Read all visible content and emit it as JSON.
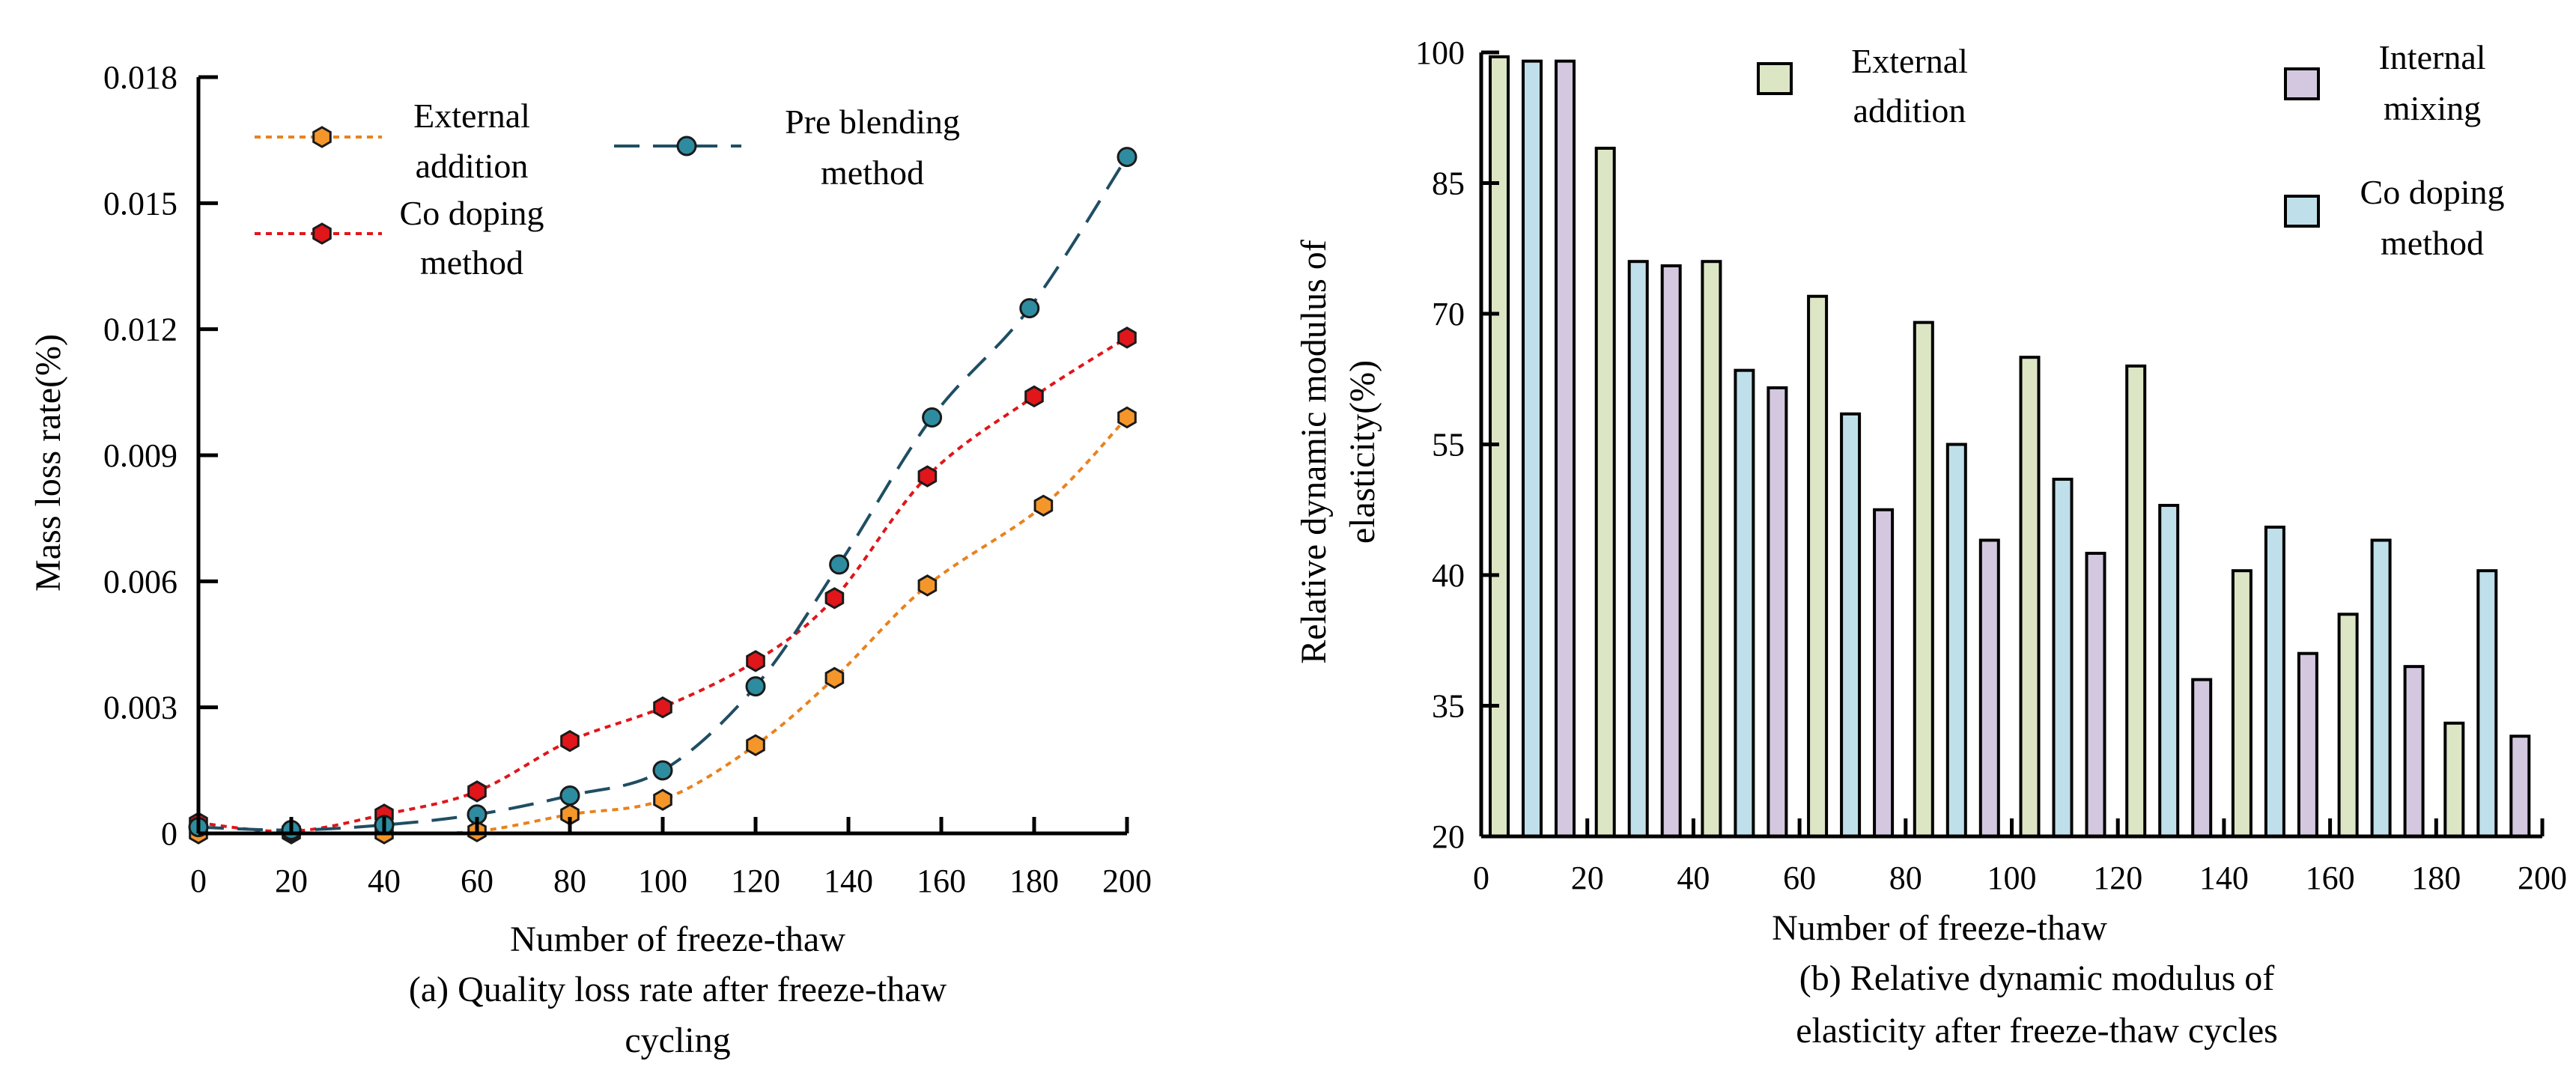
{
  "chart_data": [
    {
      "type": "line",
      "title": "",
      "caption": [
        "(a) Quality loss rate after freeze-thaw",
        "cycling"
      ],
      "xlabel": "Number of freeze-thaw",
      "ylabel": "Mass loss rate(%)",
      "x": [
        0,
        20,
        40,
        60,
        80,
        100,
        120,
        140,
        160,
        180,
        200
      ],
      "xticks": [
        "0",
        "20",
        "40",
        "60",
        "80",
        "100",
        "120",
        "140",
        "160",
        "180",
        "200"
      ],
      "xlim": [
        0,
        200
      ],
      "yticks": [
        "0",
        "0.003",
        "0.006",
        "0.009",
        "0.012",
        "0.015",
        "0.018"
      ],
      "ylim": [
        0,
        0.018
      ],
      "grid": false,
      "series": [
        {
          "name": "External addition",
          "legend": [
            "External",
            "addition"
          ],
          "color": "#E8821E",
          "marker": "#F5962A",
          "dash": "dotted",
          "x": [
            0,
            20,
            40,
            60,
            80,
            100,
            120,
            137,
            157,
            182,
            200
          ],
          "values": [
            0.0,
            0.0,
            0.0,
            5e-05,
            0.00045,
            0.0008,
            0.0021,
            0.0037,
            0.0059,
            0.0078,
            0.0099
          ]
        },
        {
          "name": "Co doping method",
          "legend": [
            "Co doping",
            "method"
          ],
          "color": "#E0161B",
          "marker": "#E0161B",
          "dash": "dotted",
          "x": [
            0,
            20,
            40,
            60,
            80,
            100,
            120,
            137,
            157,
            180,
            200
          ],
          "values": [
            0.00025,
            5e-05,
            0.00045,
            0.001,
            0.0022,
            0.003,
            0.0041,
            0.0056,
            0.0085,
            0.0104,
            0.0118
          ]
        },
        {
          "name": "Pre blending method",
          "legend": [
            "Pre blending",
            "method"
          ],
          "color": "#1F4E63",
          "marker": "#2E8CA0",
          "dash": "dashed",
          "x": [
            0,
            20,
            40,
            60,
            80,
            100,
            120,
            138,
            158,
            179,
            200
          ],
          "values": [
            0.00015,
            8e-05,
            0.0002,
            0.00045,
            0.0009,
            0.0015,
            0.0035,
            0.0064,
            0.0099,
            0.0125,
            0.0161
          ]
        }
      ]
    },
    {
      "type": "bar",
      "title": "",
      "caption": [
        "(b) Relative dynamic modulus of",
        "elasticity after freeze-thaw cycles"
      ],
      "xlabel": "Number of freeze-thaw",
      "ylabel": [
        "Relative dynamic modulus of",
        "elasticity(%)"
      ],
      "categories": [
        "0",
        "20",
        "40",
        "60",
        "80",
        "100",
        "120",
        "140",
        "160",
        "180"
      ],
      "xticks": [
        "0",
        "20",
        "40",
        "60",
        "80",
        "100",
        "120",
        "140",
        "160",
        "180",
        "200"
      ],
      "xlim": [
        0,
        200
      ],
      "yticks": [
        "20",
        "35",
        "40",
        "55",
        "70",
        "85",
        "100"
      ],
      "ylim": [
        20,
        100
      ],
      "grid": false,
      "series": [
        {
          "name": "External addition",
          "legend": [
            "External",
            "addition"
          ],
          "color": "#DCE6C4",
          "values": [
            99.5,
            89,
            76,
            72,
            69,
            65,
            64,
            40.5,
            38.5,
            33
          ]
        },
        {
          "name": "Co doping method",
          "legend": [
            "Co doping",
            "method"
          ],
          "color": "#BFE0EA",
          "values": [
            99,
            76,
            63.5,
            58.5,
            55,
            51,
            48,
            45.5,
            44,
            40.5
          ]
        },
        {
          "name": "Internal mixing",
          "legend": [
            "Internal",
            "mixing"
          ],
          "color": "#D3C8DF",
          "values": [
            99,
            75.5,
            61.5,
            47.5,
            44,
            42.5,
            36,
            37,
            36.5,
            31.5
          ]
        }
      ]
    }
  ]
}
